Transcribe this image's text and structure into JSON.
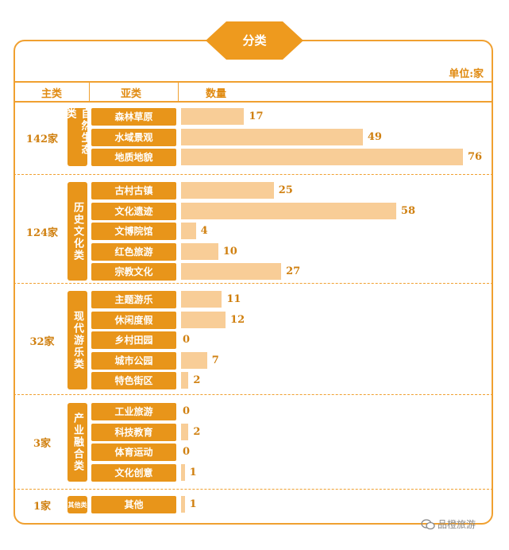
{
  "title": "分类",
  "unit": "单位:家",
  "headers": {
    "main": "主类",
    "sub": "亚类",
    "qty": "数量"
  },
  "chart_data": {
    "type": "bar",
    "orientation": "horizontal",
    "title": "分类",
    "unit": "单位:家",
    "groups": [
      {
        "main": "自然生态类",
        "count": "142家",
        "items": [
          {
            "name": "森林草原",
            "value": 17
          },
          {
            "name": "水域景观",
            "value": 49
          },
          {
            "name": "地质地貌",
            "value": 76
          }
        ]
      },
      {
        "main": "历史文化类",
        "count": "124家",
        "items": [
          {
            "name": "古村古镇",
            "value": 25
          },
          {
            "name": "文化遗迹",
            "value": 58
          },
          {
            "name": "文博院馆",
            "value": 4
          },
          {
            "name": "红色旅游",
            "value": 10
          },
          {
            "name": "宗教文化",
            "value": 27
          }
        ]
      },
      {
        "main": "现代游乐类",
        "count": "32家",
        "items": [
          {
            "name": "主题游乐",
            "value": 11
          },
          {
            "name": "休闲度假",
            "value": 12
          },
          {
            "name": "乡村田园",
            "value": 0
          },
          {
            "name": "城市公园",
            "value": 7
          },
          {
            "name": "特色街区",
            "value": 2
          }
        ]
      },
      {
        "main": "产业融合类",
        "count": "3家",
        "items": [
          {
            "name": "工业旅游",
            "value": 0
          },
          {
            "name": "科技教育",
            "value": 2
          },
          {
            "name": "体育运动",
            "value": 0
          },
          {
            "name": "文化创意",
            "value": 1
          }
        ]
      },
      {
        "main": "其他类",
        "count": "1家",
        "items": [
          {
            "name": "其他",
            "value": 1
          }
        ]
      }
    ]
  },
  "watermark": "品橙旅游",
  "colors": {
    "accent": "#E8951A",
    "bar": "#F8CD97",
    "border": "#F0A030"
  }
}
